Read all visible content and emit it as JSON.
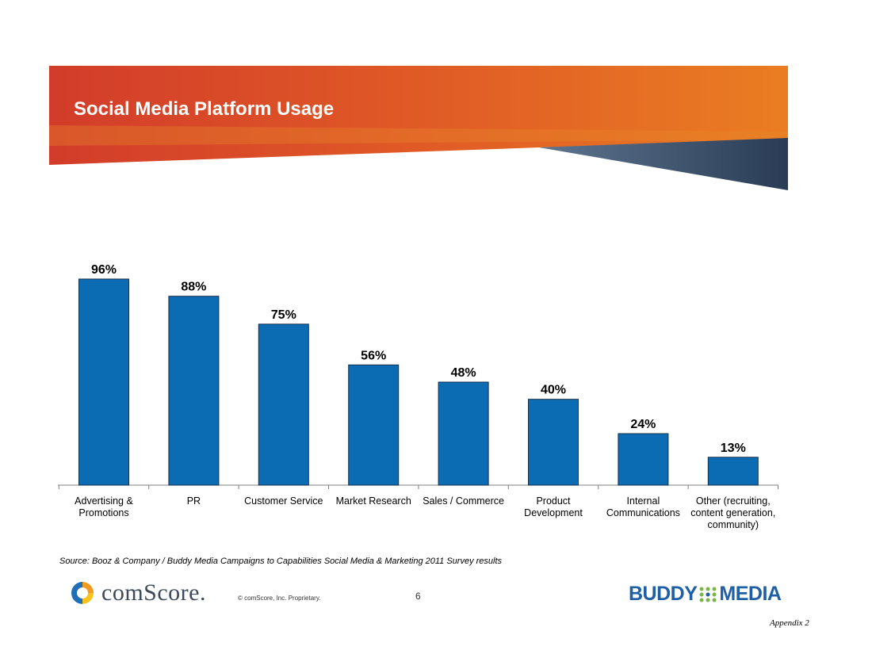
{
  "slide": {
    "title": "Social Media Platform Usage",
    "source": "Source:  Booz & Company / Buddy Media Campaigns to Capabilities Social Media & Marketing 2011 Survey results",
    "copyright": "© comScore, Inc.   Proprietary.",
    "page_number": "6",
    "appendix": "Appendix 2",
    "logos": {
      "comscore": "comScore.",
      "buddy_left": "BUDDY",
      "buddy_right": "MEDIA"
    },
    "colors": {
      "banner_red": "#d5422a",
      "banner_orange": "#e87a22",
      "banner_navy": "#2c3e56",
      "bar": "#0b6cb4"
    }
  },
  "chart_data": {
    "type": "bar",
    "title": "",
    "xlabel": "",
    "ylabel": "",
    "ylim": [
      0,
      100
    ],
    "grid": false,
    "categories": [
      [
        "Advertising &",
        "Promotions"
      ],
      [
        "PR"
      ],
      [
        "Customer Service"
      ],
      [
        "Market Research"
      ],
      [
        "Sales / Commerce"
      ],
      [
        "Product",
        "Development"
      ],
      [
        "Internal",
        "Communications"
      ],
      [
        "Other (recruiting,",
        "content generation,",
        "community)"
      ]
    ],
    "values": [
      96,
      88,
      75,
      56,
      48,
      40,
      24,
      13
    ],
    "value_labels": [
      "96%",
      "88%",
      "75%",
      "56%",
      "48%",
      "40%",
      "24%",
      "13%"
    ]
  }
}
